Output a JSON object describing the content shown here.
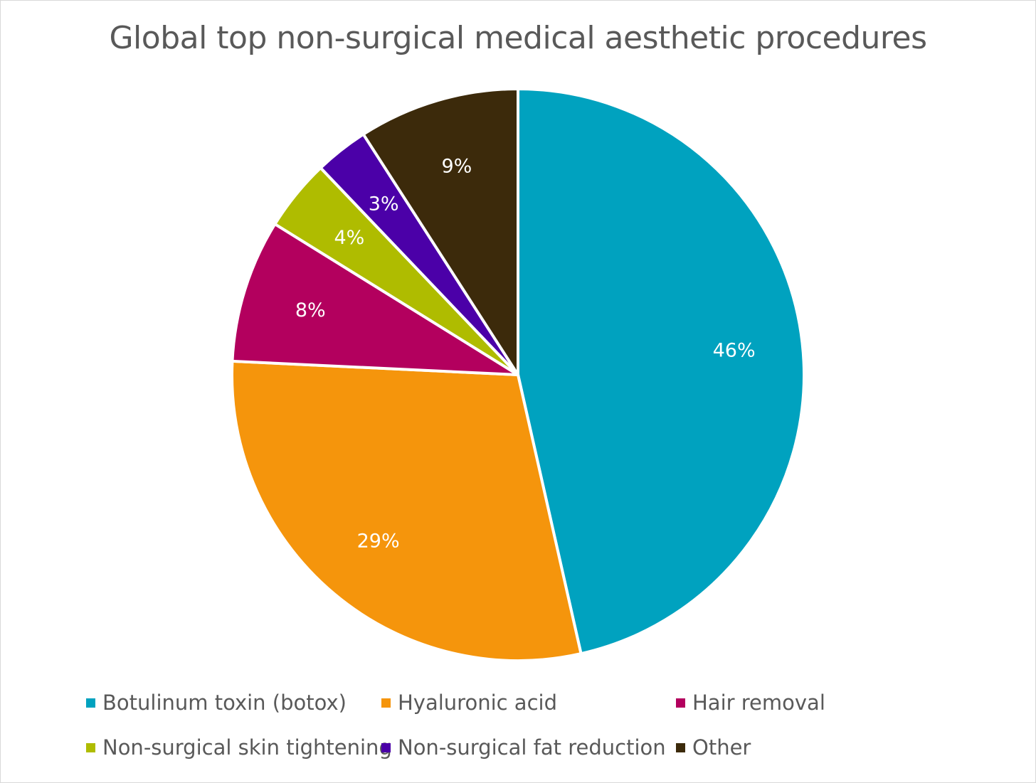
{
  "chart_data": {
    "type": "pie",
    "title": "Global top non-surgical medical aesthetic procedures",
    "categories": [
      "Botulinum toxin (botox)",
      "Hyaluronic acid",
      "Hair removal",
      "Non-surgical skin tightening",
      "Non-surgical fat reduction",
      "Other"
    ],
    "values": [
      46,
      29,
      8,
      4,
      3,
      9
    ],
    "labels": [
      "46%",
      "29%",
      "8%",
      "4%",
      "3%",
      "9%"
    ],
    "colors": [
      "#00a2bf",
      "#f5950c",
      "#b3005e",
      "#afbc00",
      "#4b00a8",
      "#3c2a0b"
    ],
    "legend_position": "bottom"
  }
}
